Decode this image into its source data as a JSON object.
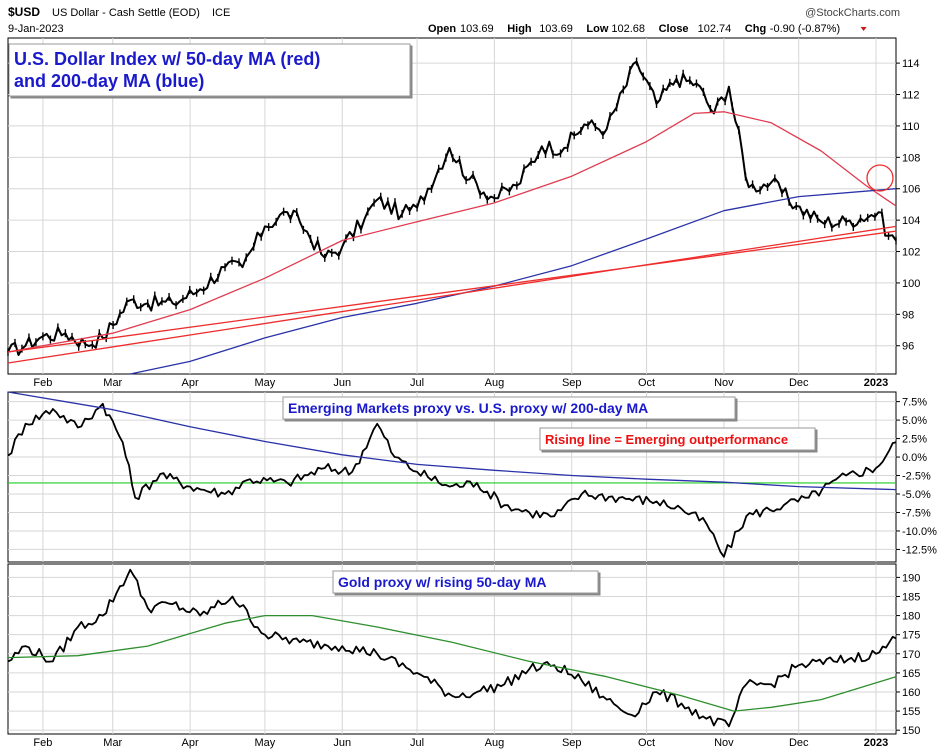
{
  "header": {
    "symbol": "$USD",
    "description": "US Dollar - Cash Settle (EOD)",
    "exchange": "ICE",
    "date": "9-Jan-2023",
    "watermark": "@StockCharts.com",
    "quote": [
      {
        "label": "Open",
        "value": "103.69"
      },
      {
        "label": "High",
        "value": "103.69"
      },
      {
        "label": "Low",
        "value": "102.68"
      },
      {
        "label": "Close",
        "value": "102.74"
      },
      {
        "label": "Chg",
        "value": "-0.90 (-0.87%)"
      }
    ]
  },
  "colors": {
    "price": "#000000",
    "ma50": "#e03c50",
    "ma200": "#2a32a8",
    "trendline": "#ee2d2d",
    "zero_line": "#22cc22",
    "gold_ma": "#2f8f2f",
    "annotation_blue": "#1a1acc",
    "annotation_red": "#ee1111"
  },
  "months": [
    "Feb",
    "Mar",
    "Apr",
    "May",
    "Jun",
    "Jul",
    "Aug",
    "Sep",
    "Oct",
    "Nov",
    "Dec",
    "2023"
  ],
  "chart_data": [
    {
      "type": "line",
      "panel": "price",
      "title": "U.S. Dollar Index w/ 50-day MA (red)",
      "subtitle": "and 200-day MA (blue)",
      "ylim": [
        94.2,
        115.6
      ],
      "yticks": [
        96,
        98,
        100,
        102,
        104,
        106,
        108,
        110,
        112,
        114
      ],
      "x_start": "2022-01-18",
      "x_end": "2023-01-09",
      "series": [
        {
          "kind": "price",
          "x": [
            "2022-01-18",
            "2022-01-25",
            "2022-02-01",
            "2022-02-10",
            "2022-02-18",
            "2022-02-25",
            "2022-03-08",
            "2022-03-15",
            "2022-03-25",
            "2022-04-05",
            "2022-04-15",
            "2022-04-22",
            "2022-05-01",
            "2022-05-10",
            "2022-05-15",
            "2022-05-25",
            "2022-06-01",
            "2022-06-10",
            "2022-06-15",
            "2022-06-25",
            "2022-07-01",
            "2022-07-14",
            "2022-07-22",
            "2022-08-01",
            "2022-08-10",
            "2022-08-20",
            "2022-08-29",
            "2022-09-06",
            "2022-09-15",
            "2022-09-27",
            "2022-10-05",
            "2022-10-13",
            "2022-10-21",
            "2022-10-28",
            "2022-11-03",
            "2022-11-11",
            "2022-11-20",
            "2022-11-30",
            "2022-12-10",
            "2022-12-20",
            "2023-01-02",
            "2023-01-06",
            "2023-01-09"
          ],
          "values": [
            95.6,
            96.0,
            96.6,
            96.8,
            96.1,
            96.5,
            98.9,
            98.7,
            98.7,
            99.6,
            101.0,
            101.0,
            103.6,
            104.5,
            103.9,
            101.6,
            102.3,
            104.1,
            105.3,
            104.4,
            104.8,
            108.6,
            106.6,
            105.4,
            106.2,
            108.7,
            108.6,
            110.1,
            109.8,
            114.1,
            111.4,
            113.0,
            112.7,
            110.8,
            112.5,
            106.1,
            106.4,
            104.9,
            103.9,
            103.9,
            104.5,
            103.0,
            102.7
          ]
        },
        {
          "kind": "ma50",
          "x": [
            "2022-01-18",
            "2022-03-01",
            "2022-04-01",
            "2022-05-01",
            "2022-06-01",
            "2022-07-01",
            "2022-08-01",
            "2022-09-01",
            "2022-10-01",
            "2022-10-20",
            "2022-11-01",
            "2022-11-20",
            "2022-12-10",
            "2022-12-28",
            "2023-01-09"
          ],
          "values": [
            95.6,
            96.8,
            98.3,
            100.3,
            102.7,
            103.9,
            105.1,
            106.8,
            109.0,
            110.8,
            110.9,
            110.2,
            108.4,
            106.2,
            104.9
          ]
        },
        {
          "kind": "ma200",
          "x": [
            "2022-03-08",
            "2022-04-01",
            "2022-05-01",
            "2022-06-01",
            "2022-07-01",
            "2022-08-01",
            "2022-09-01",
            "2022-10-01",
            "2022-11-01",
            "2022-12-01",
            "2023-01-09"
          ],
          "values": [
            94.2,
            95.0,
            96.5,
            97.8,
            98.7,
            99.8,
            101.1,
            102.8,
            104.6,
            105.5,
            106.0
          ]
        },
        {
          "kind": "trendline",
          "x": [
            "2022-01-18",
            "2023-01-09"
          ],
          "values": [
            95.6,
            103.3
          ]
        },
        {
          "kind": "trendline",
          "x": [
            "2022-01-18",
            "2023-01-09"
          ],
          "values": [
            94.9,
            103.6
          ]
        }
      ]
    },
    {
      "type": "line",
      "panel": "emerging",
      "title": "Emerging Markets proxy vs. U.S. proxy w/ 200-day MA",
      "annotation": "Rising line = Emerging outperformance",
      "ylim": [
        -14.2,
        8.8
      ],
      "yticks": [
        -12.5,
        -10.0,
        -7.5,
        -5.0,
        -2.5,
        0.0,
        2.5,
        5.0,
        7.5
      ],
      "ytick_labels": [
        "-12.5%",
        "-10.0%",
        "-7.5%",
        "-5.0%",
        "-2.5%",
        "0.0%",
        "2.5%",
        "5.0%",
        "7.5%"
      ],
      "zero_line": -3.5,
      "series": [
        {
          "kind": "price",
          "x": [
            "2022-01-18",
            "2022-01-25",
            "2022-02-05",
            "2022-02-15",
            "2022-02-25",
            "2022-03-05",
            "2022-03-10",
            "2022-03-20",
            "2022-04-01",
            "2022-04-15",
            "2022-04-25",
            "2022-05-10",
            "2022-05-25",
            "2022-06-05",
            "2022-06-15",
            "2022-06-22",
            "2022-07-01",
            "2022-07-14",
            "2022-07-25",
            "2022-08-05",
            "2022-08-15",
            "2022-08-25",
            "2022-09-05",
            "2022-09-20",
            "2022-10-05",
            "2022-10-15",
            "2022-10-25",
            "2022-11-01",
            "2022-11-10",
            "2022-11-25",
            "2022-12-05",
            "2022-12-20",
            "2023-01-01",
            "2023-01-09"
          ],
          "values": [
            0.2,
            4.5,
            6.5,
            4.0,
            7.2,
            2.0,
            -5.5,
            -2.3,
            -4.0,
            -5.0,
            -3.0,
            -3.5,
            -1.5,
            -2.0,
            4.5,
            0.0,
            -2.0,
            -4.0,
            -3.5,
            -6.5,
            -7.5,
            -8.0,
            -5.0,
            -5.5,
            -6.0,
            -7.0,
            -9.0,
            -13.5,
            -8.0,
            -6.5,
            -5.5,
            -2.5,
            -1.5,
            2.0
          ]
        },
        {
          "kind": "ma200",
          "x": [
            "2022-01-18",
            "2022-03-01",
            "2022-04-01",
            "2022-05-01",
            "2022-06-01",
            "2022-07-01",
            "2022-08-01",
            "2022-09-01",
            "2022-10-01",
            "2022-11-01",
            "2022-12-01",
            "2023-01-09"
          ],
          "values": [
            8.8,
            6.4,
            4.1,
            2.1,
            0.3,
            -1.0,
            -1.8,
            -2.5,
            -3.0,
            -3.4,
            -4.0,
            -4.4
          ]
        }
      ]
    },
    {
      "type": "line",
      "panel": "gold",
      "title": "Gold proxy w/ rising 50-day MA",
      "ylim": [
        149,
        193.5
      ],
      "yticks": [
        150,
        155,
        160,
        165,
        170,
        175,
        180,
        185,
        190
      ],
      "series": [
        {
          "kind": "price",
          "x": [
            "2022-01-18",
            "2022-01-25",
            "2022-02-05",
            "2022-02-15",
            "2022-02-25",
            "2022-03-08",
            "2022-03-15",
            "2022-03-25",
            "2022-04-05",
            "2022-04-18",
            "2022-05-01",
            "2022-05-15",
            "2022-06-01",
            "2022-06-15",
            "2022-07-01",
            "2022-07-15",
            "2022-07-25",
            "2022-08-05",
            "2022-08-15",
            "2022-08-25",
            "2022-09-05",
            "2022-09-15",
            "2022-09-25",
            "2022-10-05",
            "2022-10-15",
            "2022-10-25",
            "2022-11-03",
            "2022-11-10",
            "2022-11-20",
            "2022-12-01",
            "2022-12-15",
            "2023-01-01",
            "2023-01-09"
          ],
          "values": [
            168,
            172,
            168,
            177,
            180,
            192,
            182,
            183,
            180,
            185,
            175,
            173,
            172,
            170,
            165,
            159,
            160,
            162,
            166,
            167,
            163,
            158,
            154,
            160,
            157,
            153,
            151,
            162,
            162,
            167,
            168,
            170,
            174
          ]
        },
        {
          "kind": "ma50",
          "x": [
            "2022-01-18",
            "2022-02-15",
            "2022-03-15",
            "2022-04-15",
            "2022-05-01",
            "2022-05-20",
            "2022-06-15",
            "2022-07-15",
            "2022-08-15",
            "2022-09-15",
            "2022-10-15",
            "2022-11-05",
            "2022-11-20",
            "2022-12-10",
            "2023-01-09"
          ],
          "values": [
            169,
            169.5,
            172,
            178,
            180,
            180,
            177,
            173,
            168,
            164,
            159,
            155,
            156,
            158,
            164
          ]
        }
      ]
    }
  ]
}
